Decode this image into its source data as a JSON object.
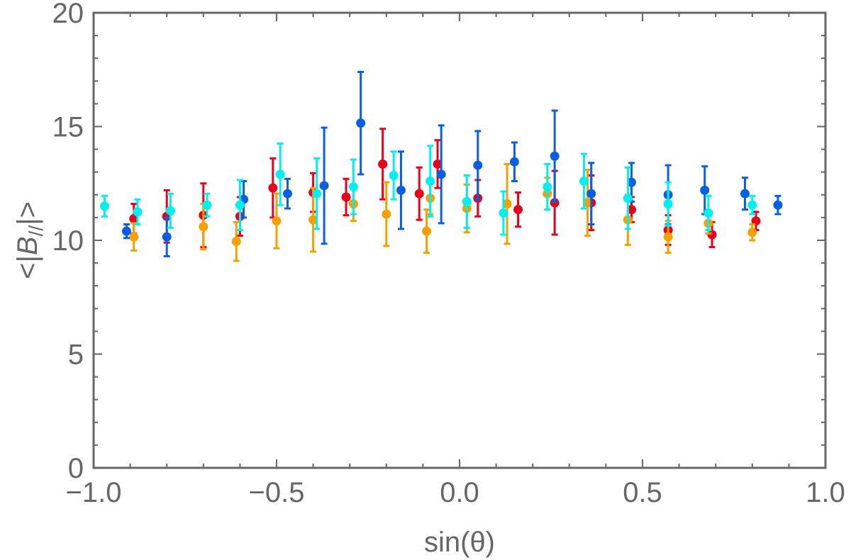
{
  "chart_data": {
    "type": "scatter",
    "title": "",
    "xlabel": "sin(θ)",
    "ylabel": "<|B//|>",
    "ylabel_parts": {
      "prefix": "<|",
      "italic": "B",
      "subscript": "//",
      "suffix": "|>"
    },
    "xlim": [
      -1.0,
      1.0
    ],
    "ylim": [
      0,
      20
    ],
    "x_ticks": [
      -1.0,
      -0.5,
      0.0,
      0.5,
      1.0
    ],
    "x_tick_labels": [
      "−1.0",
      "−0.5",
      "0.0",
      "0.5",
      "1.0"
    ],
    "y_ticks": [
      0,
      5,
      10,
      15,
      20
    ],
    "y_tick_labels": [
      "0",
      "5",
      "10",
      "15",
      "20"
    ],
    "grid": false,
    "legend": "none",
    "series": [
      {
        "name": "red",
        "color": "#e8001a",
        "points": [
          {
            "x": -0.89,
            "y": 10.95,
            "err": 0.65
          },
          {
            "x": -0.8,
            "y": 11.05,
            "err": 1.15
          },
          {
            "x": -0.7,
            "y": 11.1,
            "err": 1.4
          },
          {
            "x": -0.6,
            "y": 11.05,
            "err": 0.85
          },
          {
            "x": -0.51,
            "y": 12.3,
            "err": 1.3
          },
          {
            "x": -0.4,
            "y": 12.1,
            "err": 0.85
          },
          {
            "x": -0.31,
            "y": 11.9,
            "err": 0.8
          },
          {
            "x": -0.21,
            "y": 13.35,
            "err": 1.55
          },
          {
            "x": -0.11,
            "y": 12.05,
            "err": 1.15
          },
          {
            "x": -0.06,
            "y": 13.35,
            "err": 1.05
          },
          {
            "x": 0.05,
            "y": 11.85,
            "err": 0.8
          },
          {
            "x": 0.16,
            "y": 11.35,
            "err": 0.75
          },
          {
            "x": 0.26,
            "y": 11.65,
            "err": 1.4
          },
          {
            "x": 0.36,
            "y": 11.65,
            "err": 1.2
          },
          {
            "x": 0.47,
            "y": 11.35,
            "err": 0.55
          },
          {
            "x": 0.57,
            "y": 10.45,
            "err": 0.65
          },
          {
            "x": 0.69,
            "y": 10.25,
            "err": 0.55
          },
          {
            "x": 0.81,
            "y": 10.85,
            "err": 0.4
          }
        ]
      },
      {
        "name": "orange",
        "color": "#f5a000",
        "points": [
          {
            "x": -0.89,
            "y": 10.15,
            "err": 0.6
          },
          {
            "x": -0.7,
            "y": 10.6,
            "err": 1.0
          },
          {
            "x": -0.61,
            "y": 9.95,
            "err": 0.85
          },
          {
            "x": -0.5,
            "y": 10.85,
            "err": 1.2
          },
          {
            "x": -0.4,
            "y": 10.9,
            "err": 1.4
          },
          {
            "x": -0.29,
            "y": 11.6,
            "err": 0.75
          },
          {
            "x": -0.2,
            "y": 11.15,
            "err": 1.4
          },
          {
            "x": -0.09,
            "y": 10.4,
            "err": 0.95
          },
          {
            "x": -0.08,
            "y": 11.85,
            "err": 0.7
          },
          {
            "x": 0.02,
            "y": 11.4,
            "err": 1.05
          },
          {
            "x": 0.13,
            "y": 11.6,
            "err": 1.75
          },
          {
            "x": 0.24,
            "y": 12.05,
            "err": 0.7
          },
          {
            "x": 0.35,
            "y": 11.65,
            "err": 1.45
          },
          {
            "x": 0.46,
            "y": 10.9,
            "err": 1.1
          },
          {
            "x": 0.57,
            "y": 10.15,
            "err": 0.7
          },
          {
            "x": 0.68,
            "y": 10.75,
            "err": 0.45
          },
          {
            "x": 0.8,
            "y": 10.35,
            "err": 0.35
          }
        ]
      },
      {
        "name": "blue",
        "color": "#0a5fe0",
        "points": [
          {
            "x": -0.91,
            "y": 10.4,
            "err": 0.3
          },
          {
            "x": -0.8,
            "y": 10.15,
            "err": 0.85
          },
          {
            "x": -0.59,
            "y": 11.8,
            "err": 0.8
          },
          {
            "x": -0.47,
            "y": 12.05,
            "err": 0.65
          },
          {
            "x": -0.37,
            "y": 12.4,
            "err": 2.55
          },
          {
            "x": -0.27,
            "y": 15.15,
            "err": 2.25
          },
          {
            "x": -0.16,
            "y": 12.2,
            "err": 1.7
          },
          {
            "x": -0.05,
            "y": 12.9,
            "err": 2.15
          },
          {
            "x": 0.05,
            "y": 13.3,
            "err": 1.5
          },
          {
            "x": 0.15,
            "y": 13.45,
            "err": 0.85
          },
          {
            "x": 0.26,
            "y": 13.7,
            "err": 2.0
          },
          {
            "x": 0.36,
            "y": 12.05,
            "err": 1.35
          },
          {
            "x": 0.47,
            "y": 12.55,
            "err": 0.85
          },
          {
            "x": 0.57,
            "y": 12.0,
            "err": 1.3
          },
          {
            "x": 0.67,
            "y": 12.2,
            "err": 1.05
          },
          {
            "x": 0.78,
            "y": 12.05,
            "err": 0.7
          },
          {
            "x": 0.87,
            "y": 11.55,
            "err": 0.4
          }
        ]
      },
      {
        "name": "cyan",
        "color": "#00efef",
        "points": [
          {
            "x": -0.97,
            "y": 11.5,
            "err": 0.45
          },
          {
            "x": -0.88,
            "y": 11.25,
            "err": 0.55
          },
          {
            "x": -0.79,
            "y": 11.3,
            "err": 0.75
          },
          {
            "x": -0.69,
            "y": 11.55,
            "err": 0.5
          },
          {
            "x": -0.6,
            "y": 11.55,
            "err": 1.1
          },
          {
            "x": -0.49,
            "y": 12.9,
            "err": 1.35
          },
          {
            "x": -0.39,
            "y": 12.05,
            "err": 1.55
          },
          {
            "x": -0.29,
            "y": 12.35,
            "err": 1.2
          },
          {
            "x": -0.18,
            "y": 12.85,
            "err": 1.05
          },
          {
            "x": -0.08,
            "y": 12.6,
            "err": 1.55
          },
          {
            "x": 0.02,
            "y": 11.7,
            "err": 1.15
          },
          {
            "x": 0.12,
            "y": 11.2,
            "err": 0.95
          },
          {
            "x": 0.24,
            "y": 12.35,
            "err": 1.0
          },
          {
            "x": 0.34,
            "y": 12.6,
            "err": 1.2
          },
          {
            "x": 0.46,
            "y": 11.85,
            "err": 1.35
          },
          {
            "x": 0.57,
            "y": 11.6,
            "err": 0.95
          },
          {
            "x": 0.68,
            "y": 11.2,
            "err": 0.75
          },
          {
            "x": 0.8,
            "y": 11.55,
            "err": 0.4
          }
        ]
      }
    ]
  }
}
